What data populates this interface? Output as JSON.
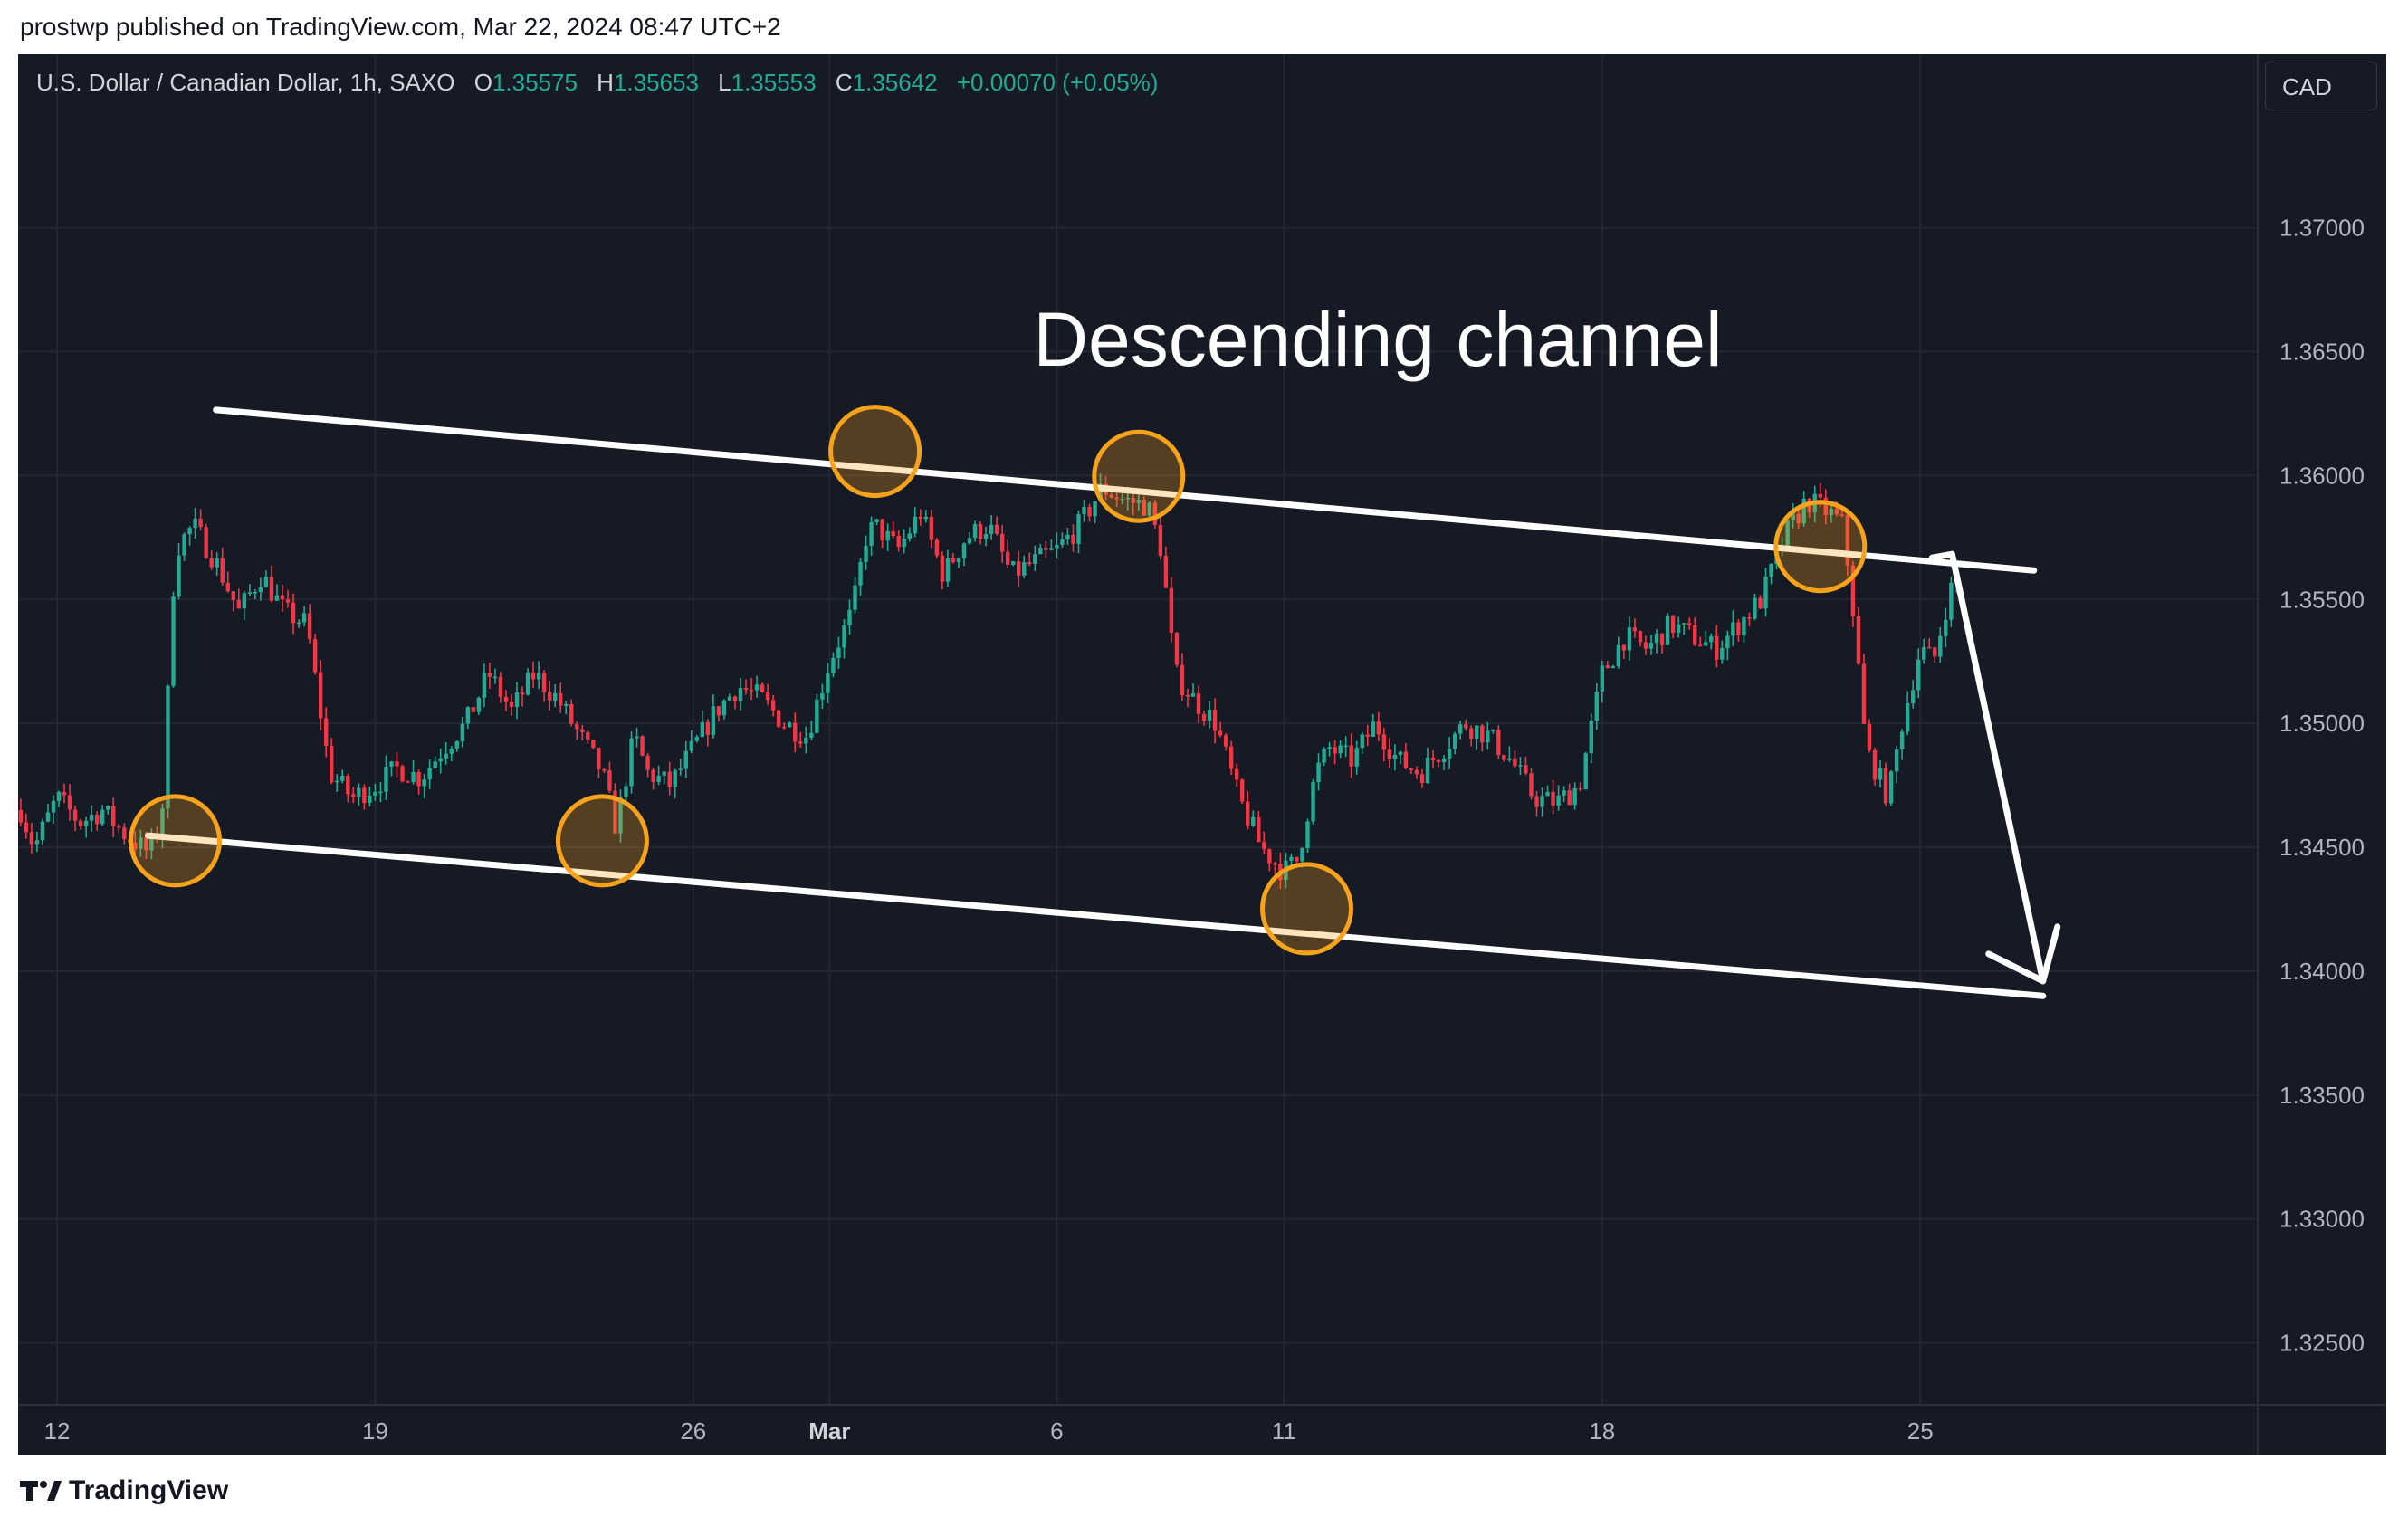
{
  "publish_line": "prostwp published on TradingView.com, Mar 22, 2024 08:47 UTC+2",
  "legend": {
    "symbol": "U.S. Dollar / Canadian Dollar, 1h, SAXO",
    "open_label": "O",
    "open": "1.35575",
    "high_label": "H",
    "high": "1.35653",
    "low_label": "L",
    "low": "1.35553",
    "close_label": "C",
    "close": "1.35642",
    "change": "+0.00070 (+0.05%)"
  },
  "currency_button": "CAD",
  "footer_logo_text": "TradingView",
  "colors": {
    "background": "#161a25",
    "up": "#22ab94",
    "down": "#f23645",
    "marker": "#f7a21b",
    "annotation": "#ffffff"
  },
  "chart_data": {
    "type": "candlestick",
    "title": "",
    "annotation_text": "Descending channel",
    "xlabel": "",
    "ylabel": "",
    "ylim": [
      1.3225,
      1.377
    ],
    "y_ticks": [
      "1.37000",
      "1.36500",
      "1.36000",
      "1.35500",
      "1.35000",
      "1.34500",
      "1.34000",
      "1.33500",
      "1.33000",
      "1.32500"
    ],
    "y_tick_values": [
      1.37,
      1.365,
      1.36,
      1.355,
      1.35,
      1.345,
      1.34,
      1.335,
      1.33,
      1.325
    ],
    "x_ticks": [
      {
        "label": "12",
        "day": 12,
        "bold": false
      },
      {
        "label": "19",
        "day": 19,
        "bold": false
      },
      {
        "label": "26",
        "day": 26,
        "bold": false
      },
      {
        "label": "Mar",
        "day": 29,
        "bold": true
      },
      {
        "label": "6",
        "day": 34,
        "bold": false
      },
      {
        "label": "11",
        "day": 39,
        "bold": false
      },
      {
        "label": "18",
        "day": 46,
        "bold": false
      },
      {
        "label": "25",
        "day": 53,
        "bold": false
      }
    ],
    "price_path": [
      [
        11.2,
        1.3465
      ],
      [
        11.5,
        1.345
      ],
      [
        12.0,
        1.347
      ],
      [
        12.5,
        1.346
      ],
      [
        13.0,
        1.3465
      ],
      [
        13.5,
        1.3455
      ],
      [
        14.0,
        1.3448
      ],
      [
        14.3,
        1.346
      ],
      [
        14.6,
        1.357
      ],
      [
        15.0,
        1.358
      ],
      [
        15.5,
        1.3565
      ],
      [
        16.0,
        1.3545
      ],
      [
        16.5,
        1.356
      ],
      [
        17.0,
        1.3545
      ],
      [
        17.5,
        1.354
      ],
      [
        18.0,
        1.348
      ],
      [
        18.5,
        1.347
      ],
      [
        19.0,
        1.3475
      ],
      [
        19.5,
        1.3482
      ],
      [
        20.0,
        1.3478
      ],
      [
        20.5,
        1.349
      ],
      [
        21.0,
        1.35
      ],
      [
        21.5,
        1.352
      ],
      [
        22.0,
        1.3505
      ],
      [
        22.5,
        1.352
      ],
      [
        23.0,
        1.351
      ],
      [
        23.5,
        1.3495
      ],
      [
        24.0,
        1.348
      ],
      [
        24.3,
        1.3458
      ],
      [
        24.7,
        1.3495
      ],
      [
        25.0,
        1.348
      ],
      [
        25.5,
        1.3475
      ],
      [
        26.0,
        1.349
      ],
      [
        26.5,
        1.3505
      ],
      [
        27.0,
        1.3515
      ],
      [
        27.5,
        1.351
      ],
      [
        28.0,
        1.35
      ],
      [
        28.5,
        1.3495
      ],
      [
        29.0,
        1.3525
      ],
      [
        29.5,
        1.3545
      ],
      [
        29.8,
        1.3575
      ],
      [
        30.0,
        1.358
      ],
      [
        30.5,
        1.357
      ],
      [
        31.0,
        1.3585
      ],
      [
        31.5,
        1.356
      ],
      [
        32.0,
        1.3575
      ],
      [
        32.5,
        1.358
      ],
      [
        33.0,
        1.356
      ],
      [
        33.5,
        1.3565
      ],
      [
        34.0,
        1.357
      ],
      [
        34.5,
        1.358
      ],
      [
        35.0,
        1.3595
      ],
      [
        35.5,
        1.359
      ],
      [
        36.0,
        1.3588
      ],
      [
        36.3,
        1.357
      ],
      [
        36.6,
        1.352
      ],
      [
        37.0,
        1.351
      ],
      [
        37.5,
        1.35
      ],
      [
        38.0,
        1.347
      ],
      [
        38.5,
        1.345
      ],
      [
        39.0,
        1.344
      ],
      [
        39.3,
        1.3445
      ],
      [
        39.7,
        1.348
      ],
      [
        40.0,
        1.349
      ],
      [
        40.5,
        1.3485
      ],
      [
        41.0,
        1.35
      ],
      [
        41.5,
        1.3485
      ],
      [
        42.0,
        1.348
      ],
      [
        42.5,
        1.349
      ],
      [
        43.0,
        1.35
      ],
      [
        43.5,
        1.3495
      ],
      [
        44.0,
        1.3485
      ],
      [
        44.5,
        1.347
      ],
      [
        45.0,
        1.3468
      ],
      [
        45.5,
        1.3475
      ],
      [
        46.0,
        1.352
      ],
      [
        46.5,
        1.3535
      ],
      [
        47.0,
        1.353
      ],
      [
        47.5,
        1.354
      ],
      [
        48.0,
        1.3535
      ],
      [
        48.5,
        1.353
      ],
      [
        49.0,
        1.354
      ],
      [
        49.5,
        1.355
      ],
      [
        50.0,
        1.3575
      ],
      [
        50.5,
        1.359
      ],
      [
        51.0,
        1.3585
      ],
      [
        51.3,
        1.358
      ],
      [
        51.5,
        1.355
      ],
      [
        51.8,
        1.349
      ],
      [
        52.3,
        1.347
      ],
      [
        52.6,
        1.35
      ],
      [
        53.0,
        1.353
      ],
      [
        53.3,
        1.3525
      ],
      [
        53.6,
        1.355
      ],
      [
        53.8,
        1.356
      ]
    ],
    "channel": {
      "upper": [
        [
          15.5,
          1.36265
        ],
        [
          55.5,
          1.35617
        ]
      ],
      "lower": [
        [
          14.0,
          1.34547
        ],
        [
          55.7,
          1.339
        ]
      ],
      "projection_arrow": [
        [
          53.7,
          1.35683
        ],
        [
          55.7,
          1.3396
        ]
      ]
    },
    "touch_markers": [
      [
        14.6,
        1.34526
      ],
      [
        24.0,
        1.34526
      ],
      [
        30.0,
        1.36098
      ],
      [
        35.8,
        1.35997
      ],
      [
        39.5,
        1.34252
      ],
      [
        50.8,
        1.35714
      ]
    ]
  }
}
